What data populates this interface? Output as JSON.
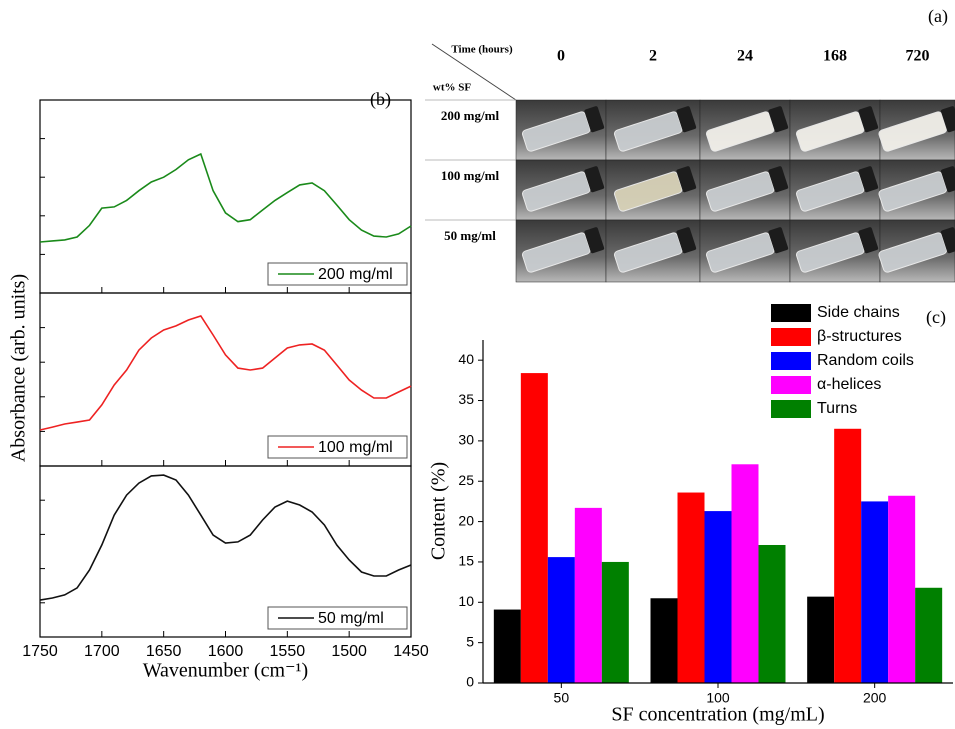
{
  "panel_labels": [
    "(a)",
    "(b)",
    "(c)"
  ],
  "photo_table": {
    "corner_top": "Time (hours)",
    "corner_bottom": "wt% SF",
    "columns": [
      "0",
      "2",
      "24",
      "168",
      "720"
    ],
    "rows": [
      "200 mg/ml",
      "100 mg/ml",
      "50 mg/ml"
    ]
  },
  "chart_data": [
    {
      "type": "line",
      "xlim": [
        1750,
        1450
      ],
      "ylim": [
        0,
        100
      ],
      "x": [
        1750,
        1740,
        1730,
        1720,
        1710,
        1700,
        1690,
        1680,
        1670,
        1660,
        1650,
        1640,
        1630,
        1620,
        1610,
        1600,
        1590,
        1580,
        1570,
        1560,
        1550,
        1540,
        1530,
        1520,
        1510,
        1500,
        1490,
        1480,
        1470,
        1460,
        1450
      ],
      "series": [
        {
          "name": "200 mg/ml",
          "color": "#1a8a1a",
          "values": [
            26.4,
            27,
            27.5,
            29,
            35,
            44,
            44.6,
            48,
            53,
            57.5,
            60,
            64,
            69,
            72,
            53,
            41.5,
            37,
            38,
            43,
            48,
            52,
            56,
            57,
            53,
            45.6,
            38,
            32.6,
            29.5,
            29,
            30.6,
            34.7
          ]
        }
      ]
    },
    {
      "type": "line",
      "xlim": [
        1750,
        1450
      ],
      "ylim": [
        0,
        100
      ],
      "ylabel": "Absorbance (arb. units)",
      "x": [
        1750,
        1740,
        1730,
        1720,
        1710,
        1700,
        1690,
        1680,
        1670,
        1660,
        1650,
        1640,
        1630,
        1620,
        1610,
        1600,
        1590,
        1580,
        1570,
        1560,
        1550,
        1540,
        1530,
        1520,
        1510,
        1500,
        1490,
        1480,
        1470,
        1460,
        1450
      ],
      "series": [
        {
          "name": "100 mg/ml",
          "color": "#ee2222",
          "values": [
            20.8,
            22.5,
            24.3,
            25.4,
            26.6,
            35.3,
            46.8,
            55.5,
            67,
            74,
            78.6,
            81,
            84.4,
            86.7,
            75.7,
            64.2,
            56.6,
            55.5,
            56.6,
            62.4,
            68.2,
            70,
            70.5,
            67,
            58.4,
            49.7,
            43.9,
            39.3,
            39.3,
            42.8,
            46.2
          ]
        }
      ]
    },
    {
      "type": "line",
      "xlim": [
        1750,
        1450
      ],
      "ylim": [
        0,
        100
      ],
      "xlabel": "Wavenumber (cm⁻¹)",
      "xticks": [
        1750,
        1700,
        1650,
        1600,
        1550,
        1500,
        1450
      ],
      "x": [
        1750,
        1740,
        1730,
        1720,
        1710,
        1700,
        1690,
        1680,
        1670,
        1660,
        1650,
        1640,
        1630,
        1620,
        1610,
        1600,
        1590,
        1580,
        1570,
        1560,
        1550,
        1540,
        1530,
        1520,
        1510,
        1500,
        1490,
        1480,
        1470,
        1460,
        1450
      ],
      "series": [
        {
          "name": "50 mg/ml",
          "color": "#111111",
          "values": [
            21.6,
            22.8,
            24.6,
            28.7,
            39.2,
            53.8,
            71.3,
            83,
            90,
            94.2,
            94.7,
            91.8,
            83,
            71.3,
            59.6,
            55,
            55.6,
            59.6,
            68.4,
            76,
            79.5,
            77.2,
            73.1,
            65.5,
            53.8,
            45,
            38,
            35.7,
            35.7,
            39.2,
            42.1
          ]
        }
      ]
    },
    {
      "type": "bar",
      "xlabel": "SF concentration (mg/mL)",
      "ylabel": "Content (%)",
      "categories": [
        "50",
        "100",
        "200"
      ],
      "ylim": [
        0,
        42.5
      ],
      "yticks": [
        0,
        5,
        10,
        15,
        20,
        25,
        30,
        35,
        40
      ],
      "series": [
        {
          "name": "Side chains",
          "color": "#000000",
          "values": [
            9.1,
            10.5,
            10.7
          ]
        },
        {
          "name": "β-structures",
          "color": "#ff0000",
          "values": [
            38.4,
            23.6,
            31.5
          ]
        },
        {
          "name": "Random coils",
          "color": "#0000ff",
          "values": [
            15.6,
            21.3,
            22.5
          ]
        },
        {
          "name": "α-helices",
          "color": "#ff00ff",
          "values": [
            21.7,
            27.1,
            23.2
          ]
        },
        {
          "name": "Turns",
          "color": "#008000",
          "values": [
            15.0,
            17.1,
            11.8
          ]
        }
      ]
    }
  ]
}
